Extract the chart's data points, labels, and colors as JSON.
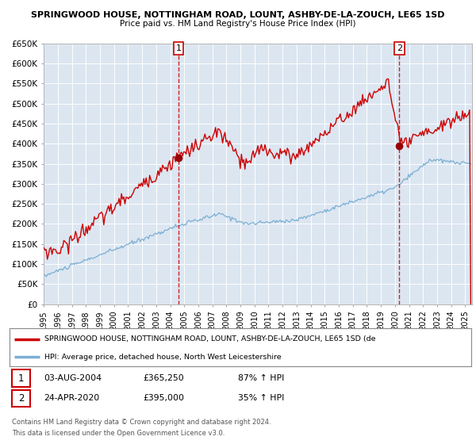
{
  "title": "SPRINGWOOD HOUSE, NOTTINGHAM ROAD, LOUNT, ASHBY-DE-LA-ZOUCH, LE65 1SD",
  "subtitle": "Price paid vs. HM Land Registry's House Price Index (HPI)",
  "ylim": [
    0,
    650000
  ],
  "yticks": [
    0,
    50000,
    100000,
    150000,
    200000,
    250000,
    300000,
    350000,
    400000,
    450000,
    500000,
    550000,
    600000,
    650000
  ],
  "ytick_labels": [
    "£0",
    "£50K",
    "£100K",
    "£150K",
    "£200K",
    "£250K",
    "£300K",
    "£350K",
    "£400K",
    "£450K",
    "£500K",
    "£550K",
    "£600K",
    "£650K"
  ],
  "xlim_start": 1995.0,
  "xlim_end": 2025.5,
  "background_color": "#ffffff",
  "plot_bg_color": "#dce6f1",
  "grid_color": "#ffffff",
  "red_line_color": "#cc0000",
  "blue_line_color": "#7bafd4",
  "marker_color": "#990000",
  "dashed_line_color": "#cc0000",
  "sale1_x": 2004.586,
  "sale1_y": 365250,
  "sale2_x": 2020.31,
  "sale2_y": 395000,
  "legend_red_label": "SPRINGWOOD HOUSE, NOTTINGHAM ROAD, LOUNT, ASHBY-DE-LA-ZOUCH, LE65 1SD (de",
  "legend_blue_label": "HPI: Average price, detached house, North West Leicestershire",
  "table_row1": [
    "1",
    "03-AUG-2004",
    "£365,250",
    "87% ↑ HPI"
  ],
  "table_row2": [
    "2",
    "24-APR-2020",
    "£395,000",
    "35% ↑ HPI"
  ],
  "footer1": "Contains HM Land Registry data © Crown copyright and database right 2024.",
  "footer2": "This data is licensed under the Open Government Licence v3.0."
}
